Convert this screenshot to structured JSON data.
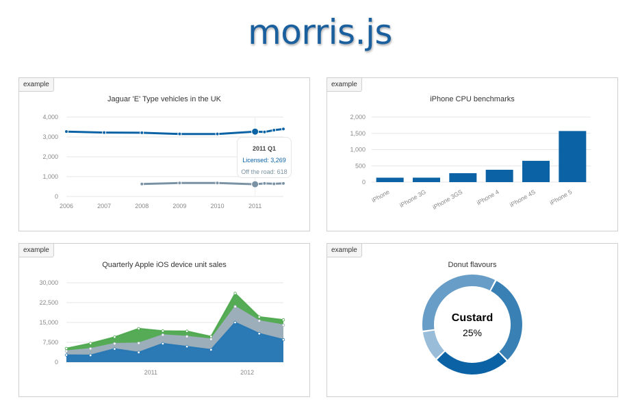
{
  "page": {
    "title": "morris.js"
  },
  "charts": [
    {
      "tag": "example",
      "chart_data": {
        "type": "line",
        "title": "Jaguar 'E' Type vehicles in the UK",
        "y_ticks": [
          "4,000",
          "3,000",
          "2,000",
          "1,000",
          "0"
        ],
        "ylim": [
          0,
          4000
        ],
        "x_ticks": [
          "2006",
          "2007",
          "2008",
          "2009",
          "2010",
          "2011"
        ],
        "xlim": [
          2006,
          2011.75
        ],
        "series": [
          {
            "name": "Licensed",
            "color": "#0b62a4",
            "x": [
              2006,
              2007,
              2008,
              2009,
              2010,
              2011,
              2011.25,
              2011.5,
              2011.75
            ],
            "values": [
              3270,
              3220,
              3210,
              3150,
              3150,
              3269,
              3250,
              3340,
              3400
            ]
          },
          {
            "name": "Off the road",
            "color": "#7a92a3",
            "x": [
              2008,
              2009,
              2010,
              2011,
              2011.25,
              2011.5,
              2011.75
            ],
            "values": [
              630,
              680,
              680,
              618,
              660,
              640,
              660
            ]
          }
        ],
        "hover": {
          "header": "2011 Q1",
          "line1": "Licensed: 3,269",
          "line2": "Off the road: 618",
          "x": 2011
        }
      }
    },
    {
      "tag": "example",
      "chart_data": {
        "type": "bar",
        "title": "iPhone CPU benchmarks",
        "categories": [
          "iPhone",
          "iPhone 3G",
          "iPhone 3GS",
          "iPhone 4",
          "iPhone 4S",
          "iPhone 5"
        ],
        "values": [
          136,
          137,
          275,
          380,
          655,
          1571
        ],
        "y_ticks": [
          "2,000",
          "1,500",
          "1,000",
          "500",
          "0"
        ],
        "ylim": [
          0,
          2000
        ],
        "color": "#0b62a4"
      }
    },
    {
      "tag": "example",
      "chart_data": {
        "type": "area",
        "title": "Quarterly Apple iOS device unit sales",
        "y_ticks": [
          "30,000",
          "22,500",
          "15,000",
          "7,500",
          "0"
        ],
        "ylim": [
          0,
          30000
        ],
        "x_ticks": [
          "2011",
          "2012"
        ],
        "x_tick_positions": [
          5,
          9
        ],
        "x": [
          0,
          1,
          2,
          3,
          4,
          5,
          6,
          7,
          8,
          9,
          10,
          11
        ],
        "series": [
          {
            "color": "#2577b5",
            "values": [
              2700,
              2600,
              5000,
              3700,
              7000,
              5900,
              4700,
              15000,
              10800,
              8500,
              0,
              0
            ]
          },
          {
            "color": "#a0aebf",
            "values": [
              1500,
              2500,
              2000,
              3500,
              3300,
              3800,
              4000,
              6000,
              4800,
              5500,
              0,
              0
            ]
          },
          {
            "color": "#4da74d",
            "values": [
              1000,
              2000,
              2500,
              5500,
              1500,
              2000,
              1000,
              5000,
              1500,
              2000,
              0,
              0
            ]
          }
        ]
      }
    },
    {
      "tag": "example",
      "chart_data": {
        "type": "pie",
        "title": "Donut flavours",
        "center_label": "Custard",
        "center_value": "25%",
        "slices": [
          {
            "value": 30,
            "color": "#3980b5"
          },
          {
            "value": 25,
            "color": "#0b62a4"
          },
          {
            "value": 10,
            "color": "#99bdd9"
          },
          {
            "value": 35,
            "color": "#679dc6"
          }
        ]
      }
    }
  ]
}
